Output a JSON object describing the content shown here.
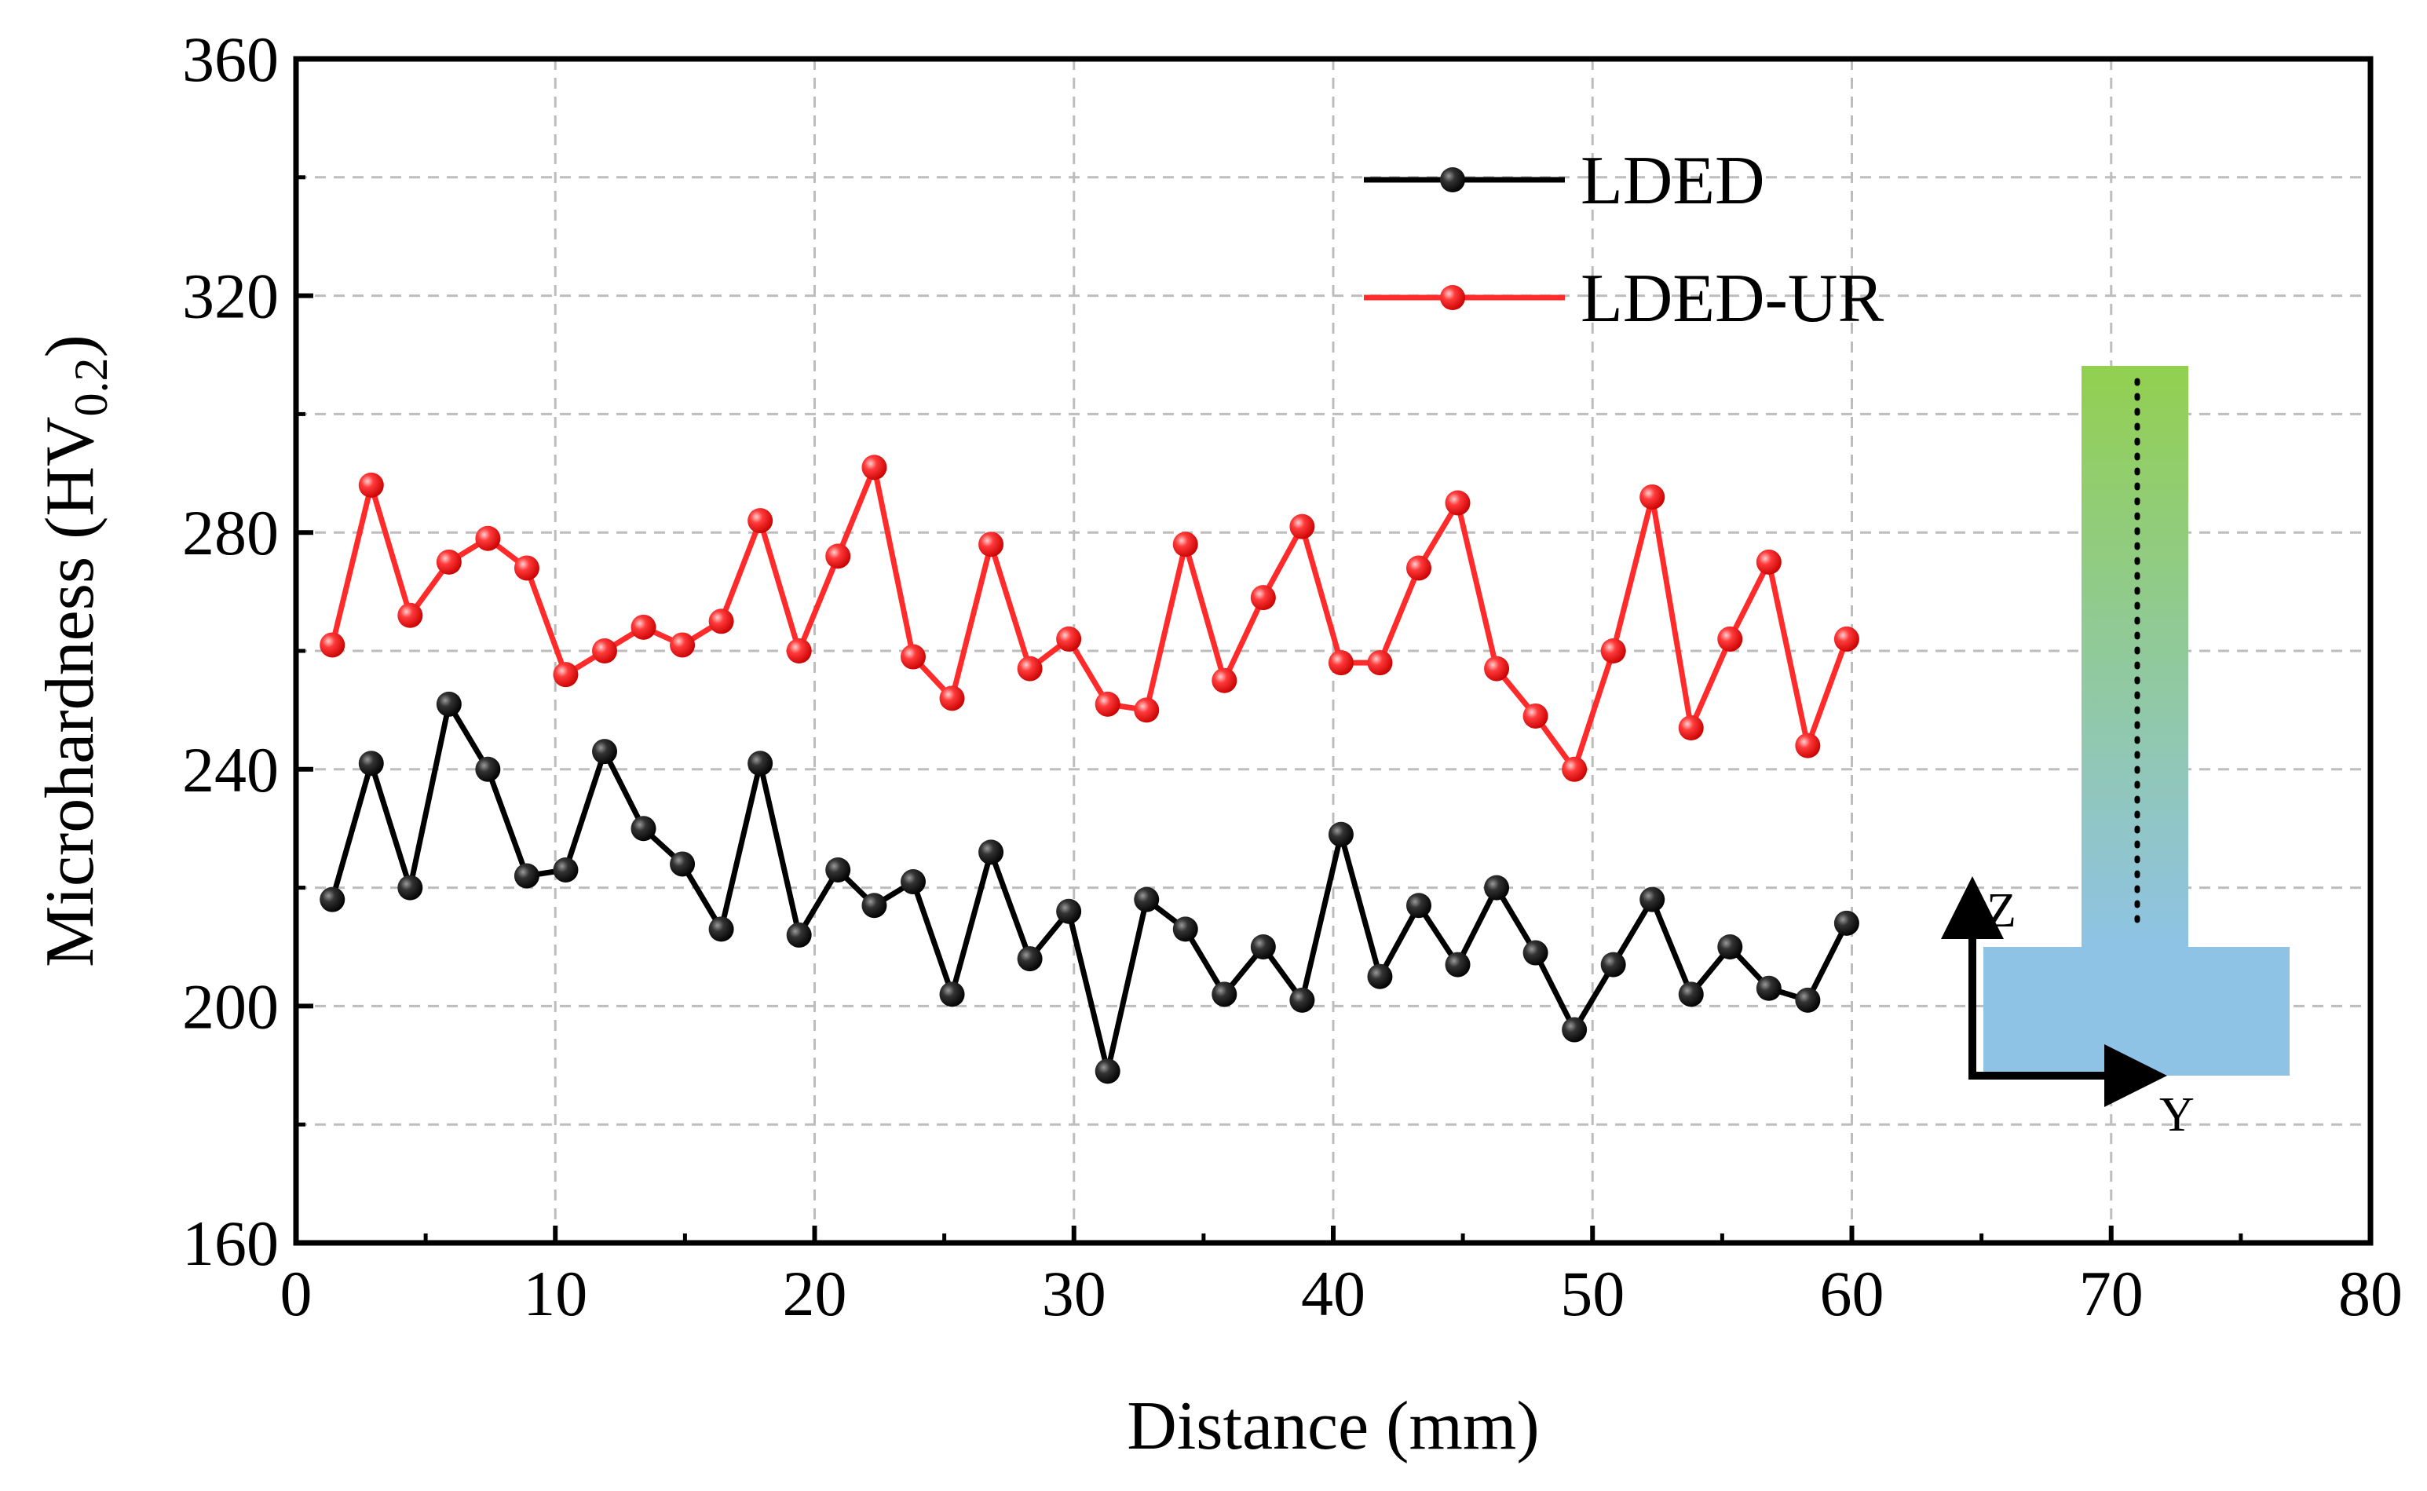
{
  "chart_data": {
    "type": "line",
    "title": "",
    "xlabel": "Distance (mm)",
    "ylabel": {
      "main": "Microhardness (HV",
      "subscript": "0.2",
      "close": ")"
    },
    "xlim": [
      0,
      80
    ],
    "ylim": [
      160,
      360
    ],
    "xticks": [
      0,
      10,
      20,
      30,
      40,
      50,
      60,
      70,
      80
    ],
    "yticks": [
      160,
      200,
      240,
      280,
      320,
      360
    ],
    "grid": true,
    "legend_position": "top-center",
    "x": [
      1.4,
      2.9,
      4.4,
      5.9,
      7.4,
      8.9,
      10.4,
      11.9,
      13.4,
      14.9,
      16.4,
      17.9,
      19.4,
      20.9,
      22.3,
      23.8,
      25.3,
      26.8,
      28.3,
      29.8,
      31.3,
      32.8,
      34.3,
      35.8,
      37.3,
      38.8,
      40.3,
      41.8,
      43.3,
      44.8,
      46.3,
      47.8,
      49.3,
      50.8,
      52.3,
      53.8,
      55.3,
      56.8,
      58.3,
      59.8
    ],
    "series": [
      {
        "name": "LDED",
        "color": "#000000",
        "values": [
          218,
          241,
          220,
          251,
          240,
          222,
          223,
          243,
          230,
          224,
          213,
          241,
          212,
          223,
          217,
          221,
          202,
          226,
          208,
          216,
          189,
          218,
          213,
          202,
          210,
          201,
          229,
          205,
          217,
          207,
          220,
          209,
          196,
          207,
          218,
          202,
          210,
          203,
          201,
          214
        ]
      },
      {
        "name": "LDED-UR",
        "color": "#ff2b2b",
        "values": [
          261,
          288,
          266,
          275,
          279,
          274,
          256,
          260,
          264,
          261,
          265,
          282,
          260,
          276,
          291,
          259,
          252,
          278,
          257,
          262,
          251,
          250,
          278,
          255,
          269,
          281,
          258,
          258,
          274,
          285,
          257,
          249,
          240,
          260,
          286,
          247,
          262,
          275,
          244,
          262
        ]
      }
    ]
  },
  "inset": {
    "z_label": "Z",
    "y_label": "Y",
    "gradient_top_color": "#92d050",
    "gradient_bottom_color": "#8fc3e6"
  }
}
